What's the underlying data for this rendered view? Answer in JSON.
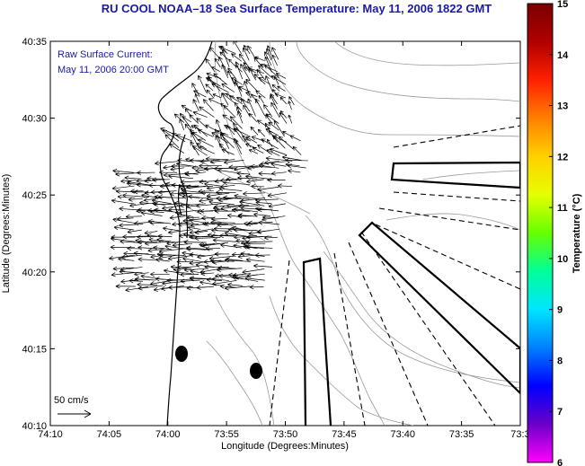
{
  "title": "RU COOL  NOAA–18  Sea Surface Temperature:  May 11, 2006 1822 GMT",
  "annotation": {
    "line1": "Raw Surface Current:",
    "line2": "May 11, 2006 20:00 GMT"
  },
  "scale_label": "50 cm/s",
  "xaxis": {
    "label": "Longitude (Degrees:Minutes)",
    "ticks": [
      "74:10",
      "74:05",
      "74:00",
      "73:55",
      "73:50",
      "73:45",
      "73:40",
      "73:35",
      "73:3"
    ]
  },
  "yaxis": {
    "label": "Latitude (Degrees:Minutes)",
    "ticks": [
      "40:35",
      "40:30",
      "40:25",
      "40:20",
      "40:15",
      "40:10"
    ]
  },
  "colorbar": {
    "label": "Temperature (°C)",
    "ticks": [
      "15",
      "14",
      "13",
      "12",
      "11",
      "10",
      "9",
      "8",
      "7",
      "6"
    ],
    "colors": [
      "#ff00ff",
      "#6a00c8",
      "#0000ff",
      "#0080ff",
      "#00e5ff",
      "#00ff99",
      "#66ff00",
      "#e6ff00",
      "#ffd000",
      "#ff8000",
      "#ff2000",
      "#b00000",
      "#7a0000"
    ]
  },
  "colors": {
    "title": "#1a1aa6",
    "coast": "#000000",
    "contour": "#9a9a9a"
  }
}
